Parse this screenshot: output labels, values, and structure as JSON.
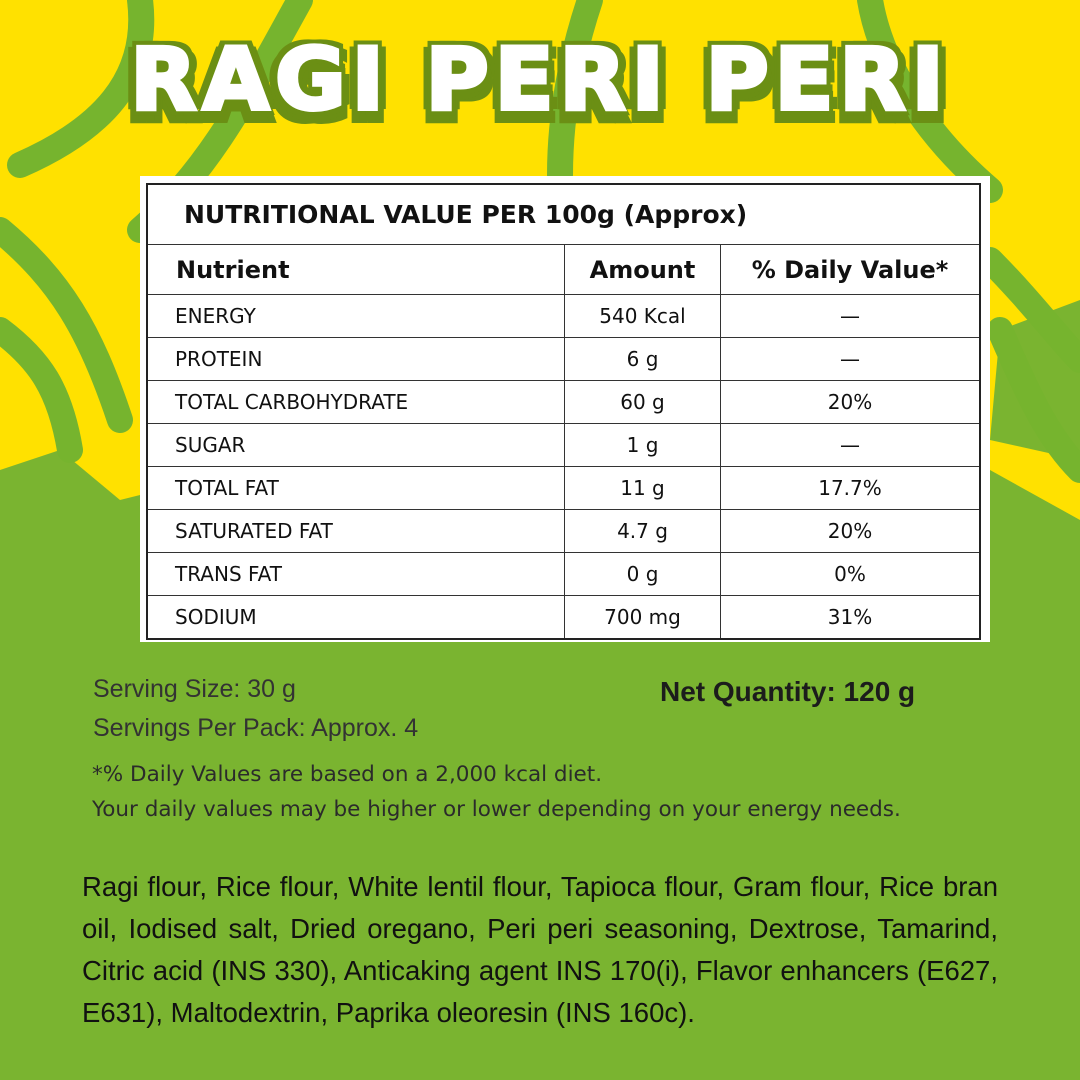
{
  "title": "RAGI PERI PERI",
  "colors": {
    "yellow": "#FFE100",
    "green": "#7AB430",
    "title_outline": "#6B8F14"
  },
  "table": {
    "caption": "NUTRITIONAL VALUE PER 100g (Approx)",
    "headers": [
      "Nutrient",
      "Amount",
      "% Daily Value*"
    ],
    "rows": [
      [
        "ENERGY",
        "540 Kcal",
        "—"
      ],
      [
        "PROTEIN",
        "6 g",
        "—"
      ],
      [
        "TOTAL CARBOHYDRATE",
        "60 g",
        "20%"
      ],
      [
        "SUGAR",
        "1 g",
        "—"
      ],
      [
        "TOTAL FAT",
        "11 g",
        "17.7%"
      ],
      [
        "SATURATED FAT",
        "4.7 g",
        "20%"
      ],
      [
        "TRANS FAT",
        "0 g",
        "0%"
      ],
      [
        "SODIUM",
        "700 mg",
        "31%"
      ]
    ]
  },
  "serving_size": "Serving Size: 30 g",
  "servings_per_pack": "Servings Per Pack: Approx. 4",
  "net_quantity": "Net Quantity: 120 g",
  "footnote_1": "*% Daily Values are based on a 2,000 kcal diet.",
  "footnote_2": "Your daily values may be higher or lower depending on your energy needs.",
  "ingredients": "Ragi flour, Rice flour, White lentil flour, Tapioca flour, Gram flour, Rice bran oil, Iodised salt, Dried oregano, Peri peri seasoning, Dextrose, Tamarind, Citric acid (INS 330), Anticaking agent INS 170(i), Flavor enhancers (E627, E631), Maltodextrin, Paprika oleoresin (INS 160c)."
}
